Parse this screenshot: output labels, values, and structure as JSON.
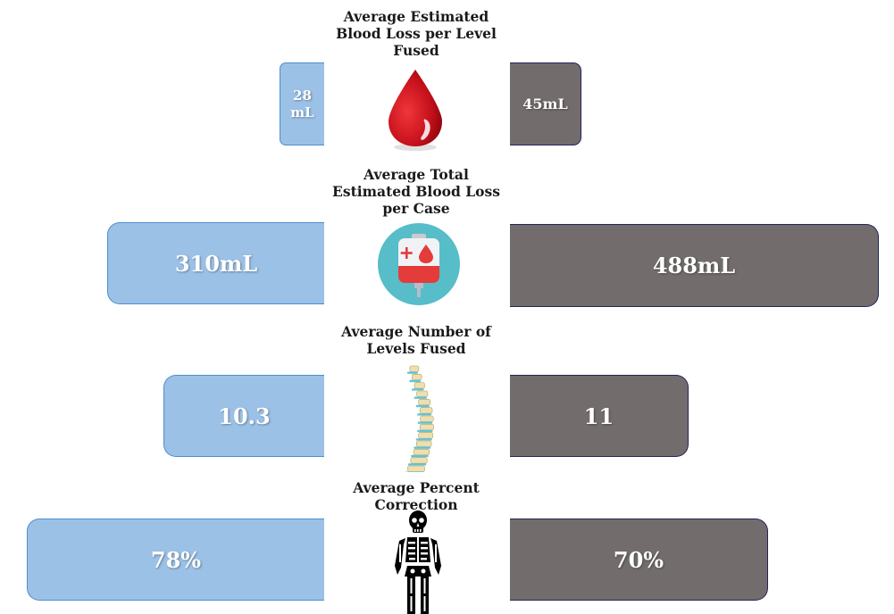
{
  "colors": {
    "left_bar": "#9cc1e6",
    "left_border": "#4a8fce",
    "right_bar": "#726d6c",
    "right_border": "#24245e"
  },
  "icons": {
    "row1": "blood-drop-icon",
    "row2": "blood-bag-icon",
    "row3": "spine-icon",
    "row4": "skeleton-icon"
  },
  "chart_data": {
    "type": "bar",
    "orientation": "horizontal-diverging",
    "categories": [
      "Average Estimated\nBlood Loss per Level\nFused",
      "Average Total\nEstimated Blood Loss\nper Case",
      "Average Number of\nLevels Fused",
      "Average Percent\nCorrection"
    ],
    "series": [
      {
        "values": [
          28,
          310,
          10.3,
          78
        ],
        "labels": [
          "28\nmL",
          "310mL",
          "10.3",
          "78%"
        ]
      },
      {
        "values": [
          45,
          488,
          11,
          70
        ],
        "labels": [
          "45mL",
          "488mL",
          "11",
          "70%"
        ]
      }
    ]
  }
}
